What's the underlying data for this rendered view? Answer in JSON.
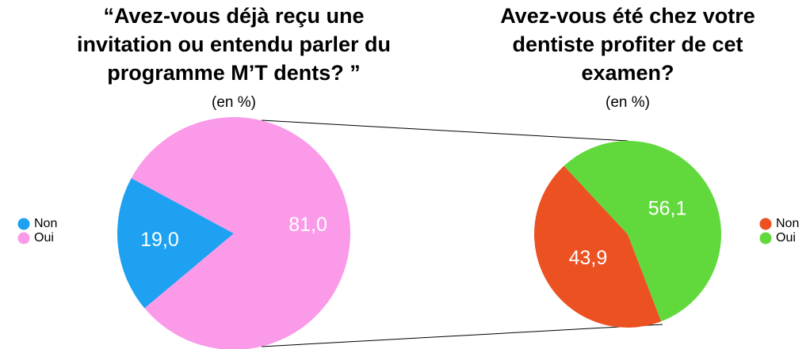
{
  "chart_data": [
    {
      "type": "pie",
      "title": [
        "“Avez-vous déjà reçu une",
        "invitation ou entendu parler du",
        "programme M’T dents? ”"
      ],
      "subtitle": "(en %)",
      "categories": [
        "Non",
        "Oui"
      ],
      "values": [
        19.0,
        81.0
      ],
      "value_labels": [
        "19,0",
        "81,0"
      ],
      "colors": [
        "#1ea1f1",
        "#fa9ae9"
      ],
      "legend": "left"
    },
    {
      "type": "pie",
      "title": [
        "Avez-vous été chez votre",
        "dentiste profiter de cet",
        "examen?"
      ],
      "subtitle": "(en %)",
      "categories": [
        "Non",
        "Oui"
      ],
      "values": [
        43.9,
        56.1
      ],
      "value_labels": [
        "43,9",
        "56,1"
      ],
      "colors": [
        "#ec5122",
        "#61d93c"
      ],
      "legend": "right"
    }
  ]
}
